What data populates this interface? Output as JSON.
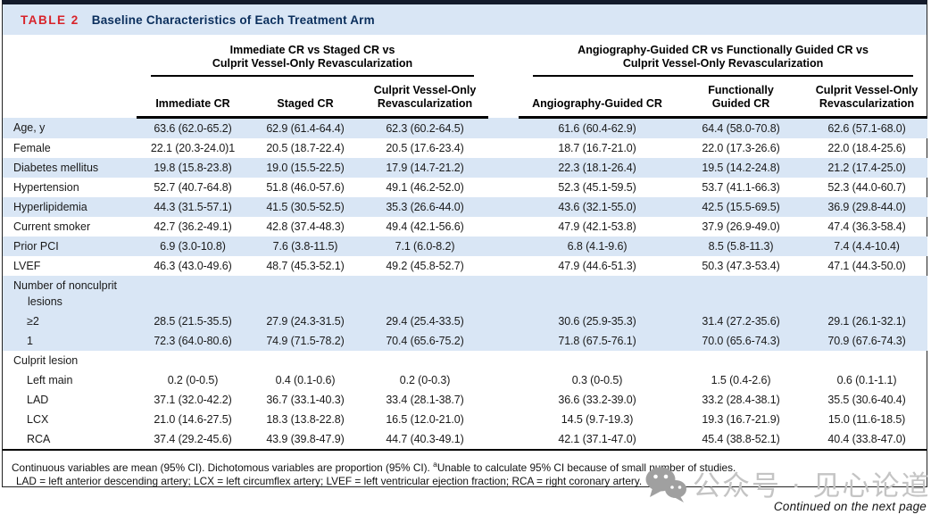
{
  "table": {
    "tag": "TABLE 2",
    "title": "Baseline Characteristics of Each Treatment Arm",
    "groups": [
      {
        "line1": "Immediate CR vs Staged CR vs",
        "line2": "Culprit Vessel-Only Revascularization"
      },
      {
        "line1": "Angiography-Guided CR vs Functionally Guided CR vs",
        "line2": "Culprit Vessel-Only Revascularization"
      }
    ],
    "columns": [
      "Immediate CR",
      "Staged CR",
      "Culprit Vessel-Only\nRevascularization",
      "Angiography-Guided CR",
      "Functionally\nGuided CR",
      "Culprit Vessel-Only\nRevascularization"
    ],
    "rows": [
      {
        "label": "Age, y",
        "indent": 0,
        "section": false,
        "stripe": true,
        "values": [
          "63.6 (62.0-65.2)",
          "62.9 (61.4-64.4)",
          "62.3 (60.2-64.5)",
          "61.6 (60.4-62.9)",
          "64.4 (58.0-70.8)",
          "62.6 (57.1-68.0)"
        ]
      },
      {
        "label": "Female",
        "indent": 0,
        "section": false,
        "stripe": false,
        "values": [
          "22.1 (20.3-24.0)1",
          "20.5 (18.7-22.4)",
          "20.5 (17.6-23.4)",
          "18.7 (16.7-21.0)",
          "22.0 (17.3-26.6)",
          "22.0 (18.4-25.6)"
        ]
      },
      {
        "label": "Diabetes mellitus",
        "indent": 0,
        "section": false,
        "stripe": true,
        "values": [
          "19.8 (15.8-23.8)",
          "19.0 (15.5-22.5)",
          "17.9 (14.7-21.2)",
          "22.3 (18.1-26.4)",
          "19.5 (14.2-24.8)",
          "21.2 (17.4-25.0)"
        ]
      },
      {
        "label": "Hypertension",
        "indent": 0,
        "section": false,
        "stripe": false,
        "values": [
          "52.7 (40.7-64.8)",
          "51.8 (46.0-57.6)",
          "49.1 (46.2-52.0)",
          "52.3 (45.1-59.5)",
          "53.7 (41.1-66.3)",
          "52.3 (44.0-60.7)"
        ]
      },
      {
        "label": "Hyperlipidemia",
        "indent": 0,
        "section": false,
        "stripe": true,
        "values": [
          "44.3 (31.5-57.1)",
          "41.5 (30.5-52.5)",
          "35.3 (26.6-44.0)",
          "43.6 (32.1-55.0)",
          "42.5 (15.5-69.5)",
          "36.9 (29.8-44.0)"
        ]
      },
      {
        "label": "Current smoker",
        "indent": 0,
        "section": false,
        "stripe": false,
        "values": [
          "42.7 (36.2-49.1)",
          "42.8 (37.4-48.3)",
          "49.4 (42.1-56.6)",
          "47.9 (42.1-53.8)",
          "37.9 (26.9-49.0)",
          "47.4 (36.3-58.4)"
        ]
      },
      {
        "label": "Prior PCI",
        "indent": 0,
        "section": false,
        "stripe": true,
        "values": [
          "6.9 (3.0-10.8)",
          "7.6 (3.8-11.5)",
          "7.1 (6.0-8.2)",
          "6.8 (4.1-9.6)",
          "8.5 (5.8-11.3)",
          "7.4 (4.4-10.4)"
        ]
      },
      {
        "label": "LVEF",
        "indent": 0,
        "section": false,
        "stripe": false,
        "values": [
          "46.3 (43.0-49.6)",
          "48.7 (45.3-52.1)",
          "49.2 (45.8-52.7)",
          "47.9 (44.6-51.3)",
          "50.3 (47.3-53.4)",
          "47.1 (44.3-50.0)"
        ]
      },
      {
        "label": "Number of nonculprit lesions",
        "indent": 0,
        "section": true,
        "stripe": true,
        "values": [
          "",
          "",
          "",
          "",
          "",
          ""
        ]
      },
      {
        "label": "≥2",
        "indent": 1,
        "section": false,
        "stripe": true,
        "values": [
          "28.5 (21.5-35.5)",
          "27.9 (24.3-31.5)",
          "29.4 (25.4-33.5)",
          "30.6 (25.9-35.3)",
          "31.4 (27.2-35.6)",
          "29.1 (26.1-32.1)"
        ]
      },
      {
        "label": "1",
        "indent": 1,
        "section": false,
        "stripe": true,
        "values": [
          "72.3 (64.0-80.6)",
          "74.9 (71.5-78.2)",
          "70.4 (65.6-75.2)",
          "71.8 (67.5-76.1)",
          "70.0 (65.6-74.3)",
          "70.9 (67.6-74.3)"
        ]
      },
      {
        "label": "Culprit lesion",
        "indent": 0,
        "section": false,
        "stripe": false,
        "values": [
          "",
          "",
          "",
          "",
          "",
          ""
        ]
      },
      {
        "label": "Left main",
        "indent": 1,
        "section": false,
        "stripe": false,
        "values": [
          "0.2 (0-0.5)",
          "0.4 (0.1-0.6)",
          "0.2 (0-0.3)",
          "0.3 (0-0.5)",
          "1.5 (0.4-2.6)",
          "0.6 (0.1-1.1)"
        ]
      },
      {
        "label": "LAD",
        "indent": 1,
        "section": false,
        "stripe": false,
        "values": [
          "37.1 (32.0-42.2)",
          "36.7 (33.1-40.3)",
          "33.4 (28.1-38.7)",
          "36.6 (33.2-39.0)",
          "33.2 (28.4-38.1)",
          "35.5 (30.6-40.4)"
        ]
      },
      {
        "label": "LCX",
        "indent": 1,
        "section": false,
        "stripe": false,
        "values": [
          "21.0 (14.6-27.5)",
          "18.3 (13.8-22.8)",
          "16.5 (12.0-21.0)",
          "14.5 (9.7-19.3)",
          "19.3 (16.7-21.9)",
          "15.0 (11.6-18.5)"
        ]
      },
      {
        "label": "RCA",
        "indent": 1,
        "section": false,
        "stripe": false,
        "values": [
          "37.4 (29.2-45.6)",
          "43.9 (39.8-47.9)",
          "44.7 (40.3-49.1)",
          "42.1 (37.1-47.0)",
          "45.4 (38.8-52.1)",
          "40.4 (33.8-47.0)"
        ]
      }
    ],
    "footnote_1_pre": "Continuous variables are mean (95% CI). Dichotomous variables are proportion (95% CI). ",
    "footnote_1_sup": "a",
    "footnote_1_post": "Unable to calculate 95% CI because of small number of studies.",
    "footnote_2": "LAD = left anterior descending artery; LCX = left circumflex artery; LVEF = left ventricular ejection fraction; RCA = right coronary artery.",
    "continued": "Continued on the next page"
  },
  "watermark": {
    "icon": "wechat-icon",
    "text": "公众号 · 见心论道"
  },
  "colors": {
    "accent_red": "#d8232a",
    "navy": "#0a2e5c",
    "stripe_blue": "#d9e6f5",
    "watermark_gray": "#c4c4c4"
  }
}
